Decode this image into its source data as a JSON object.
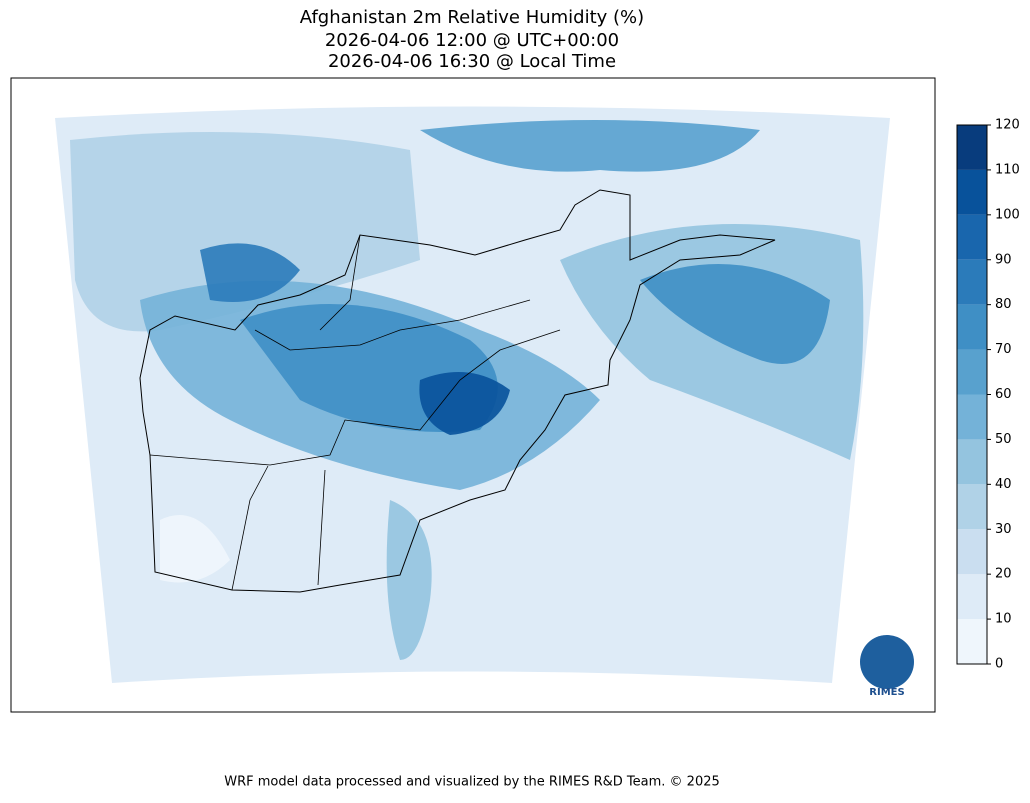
{
  "title": [
    "Afghanistan 2m Relative Humidity (%)",
    "2026-04-06 12:00 @ UTC+00:00",
    "2026-04-06 16:30 @ Local Time"
  ],
  "colorbar": {
    "lim": [
      0,
      120
    ],
    "ticks": [
      0,
      10,
      20,
      30,
      40,
      50,
      60,
      70,
      80,
      90,
      100,
      110,
      120
    ],
    "colors": [
      "#eff6fc",
      "#deebf7",
      "#cadef0",
      "#b0d2e7",
      "#94c4df",
      "#74b2d8",
      "#58a1ce",
      "#3f8fc5",
      "#2b7bba",
      "#1966ad",
      "#08529b",
      "#083c7d"
    ]
  },
  "logo": "RIMES",
  "footer": "WRF model data processed and visualized by the RIMES R&D Team. © 2025"
}
